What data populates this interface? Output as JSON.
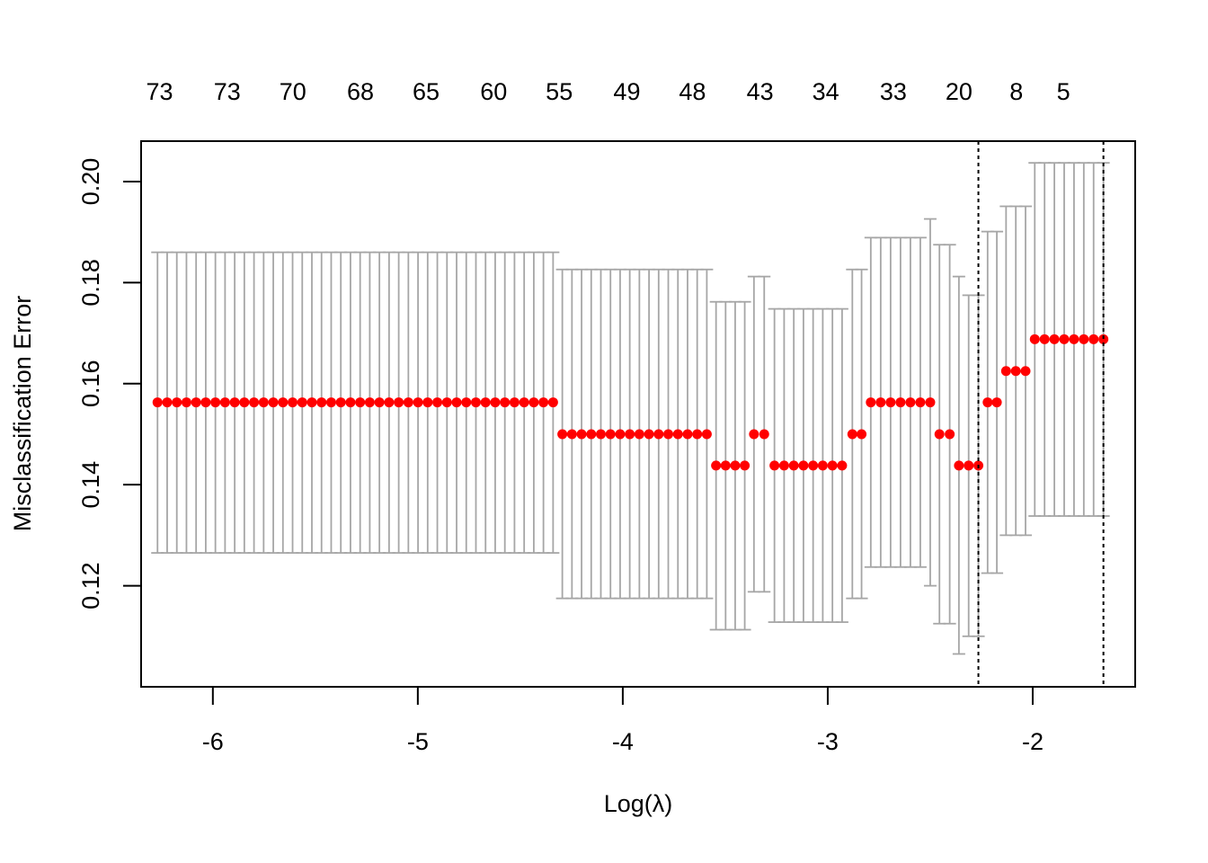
{
  "chart_data": {
    "type": "scatter",
    "title": "",
    "xlabel": "Log(λ)",
    "ylabel": "Misclassification Error",
    "xlim": [
      -6.35,
      -1.5
    ],
    "ylim": [
      0.1,
      0.208
    ],
    "x_ticks": [
      -6,
      -5,
      -4,
      -3,
      -2
    ],
    "x_tick_labels": [
      "-6",
      "-5",
      "-4",
      "-3",
      "-2"
    ],
    "y_ticks": [
      0.12,
      0.14,
      0.16,
      0.18,
      0.2
    ],
    "y_tick_labels": [
      "0.12",
      "0.14",
      "0.16",
      "0.18",
      "0.20"
    ],
    "top_axis": {
      "x": [
        -6.26,
        -5.93,
        -5.61,
        -5.28,
        -4.96,
        -4.63,
        -4.31,
        -3.98,
        -3.66,
        -3.33,
        -3.01,
        -2.68,
        -2.36,
        -2.08,
        -1.85
      ],
      "labels": [
        "73",
        "73",
        "70",
        "68",
        "65",
        "60",
        "55",
        "49",
        "48",
        "43",
        "34",
        "33",
        "20",
        "8",
        "5"
      ]
    },
    "vlines": [
      -2.265,
      -1.655
    ],
    "groups": [
      {
        "x_start": -6.27,
        "x_end": -4.34,
        "n": 42,
        "mean": 0.1563,
        "lower": 0.1265,
        "upper": 0.186
      },
      {
        "x_start": -4.295,
        "x_end": -3.59,
        "n": 16,
        "mean": 0.15,
        "lower": 0.1175,
        "upper": 0.1826
      },
      {
        "x_start": -3.545,
        "x_end": -3.405,
        "n": 4,
        "mean": 0.1438,
        "lower": 0.1113,
        "upper": 0.1762
      },
      {
        "x_start": -3.36,
        "x_end": -3.31,
        "n": 2,
        "mean": 0.15,
        "lower": 0.1188,
        "upper": 0.1812
      },
      {
        "x_start": -3.26,
        "x_end": -2.93,
        "n": 8,
        "mean": 0.1438,
        "lower": 0.1128,
        "upper": 0.1748
      },
      {
        "x_start": -2.88,
        "x_end": -2.835,
        "n": 2,
        "mean": 0.15,
        "lower": 0.1175,
        "upper": 0.1826
      },
      {
        "x_start": -2.79,
        "x_end": -2.5,
        "n": 7,
        "mean": 0.1563,
        "lower": 0.1237,
        "upper": 0.1889
      },
      {
        "x_start": -2.455,
        "x_end": -2.405,
        "n": 2,
        "mean": 0.15,
        "lower": 0.1125,
        "upper": 0.1875
      },
      {
        "x_start": -2.36,
        "x_end": -2.265,
        "n": 3,
        "mean": 0.1438,
        "lower": 0.11,
        "upper": 0.1775
      },
      {
        "x_start": -2.22,
        "x_end": -2.175,
        "n": 2,
        "mean": 0.1563,
        "lower": 0.1225,
        "upper": 0.1901
      },
      {
        "x_start": -2.13,
        "x_end": -2.035,
        "n": 3,
        "mean": 0.1625,
        "lower": 0.13,
        "upper": 0.1951
      },
      {
        "x_start": -1.99,
        "x_end": -1.655,
        "n": 8,
        "mean": 0.1688,
        "lower": 0.1338,
        "upper": 0.2037
      }
    ],
    "overrides": [
      {
        "x": -2.5,
        "lower": 0.12,
        "upper": 0.1926
      },
      {
        "x": -2.455,
        "lower": 0.1125,
        "upper": 0.1875
      },
      {
        "x": -2.36,
        "lower": 0.1065,
        "upper": 0.1812
      },
      {
        "x": -2.265,
        "lower": 0.11,
        "upper": 0.1775
      }
    ],
    "colors": {
      "points": "#ff0000",
      "errorbars": "#a6a6a6",
      "frame": "#000000"
    }
  }
}
